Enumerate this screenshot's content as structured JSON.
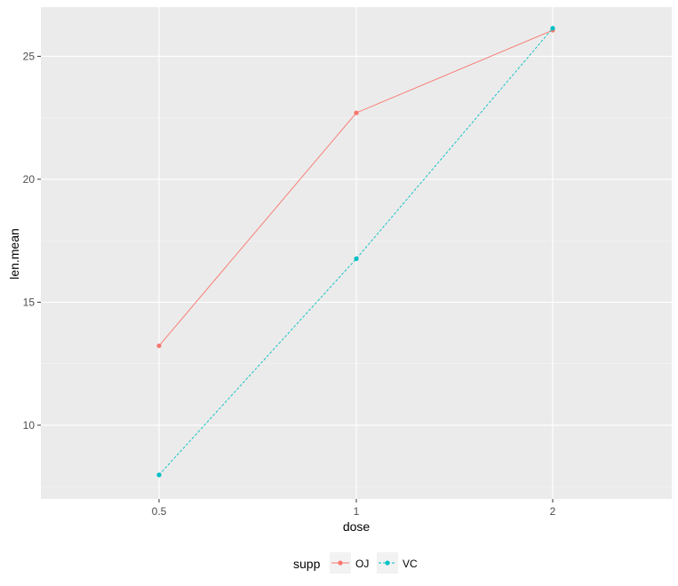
{
  "chart_data": {
    "type": "line",
    "xlabel": "dose",
    "ylabel": "len.mean",
    "categories": [
      "0.5",
      "1",
      "2"
    ],
    "x_scale": "discrete",
    "ylim": [
      7,
      27
    ],
    "y_ticks": [
      10,
      15,
      20,
      25
    ],
    "grid": true,
    "legend": {
      "title": "supp",
      "position": "bottom"
    },
    "series": [
      {
        "name": "OJ",
        "values": [
          13.23,
          22.7,
          26.06
        ],
        "color": "#F8766D",
        "linestyle": "solid",
        "marker": "circle"
      },
      {
        "name": "VC",
        "values": [
          7.98,
          16.77,
          26.14
        ],
        "color": "#00BFC4",
        "linestyle": "dashed",
        "marker": "circle"
      }
    ]
  }
}
